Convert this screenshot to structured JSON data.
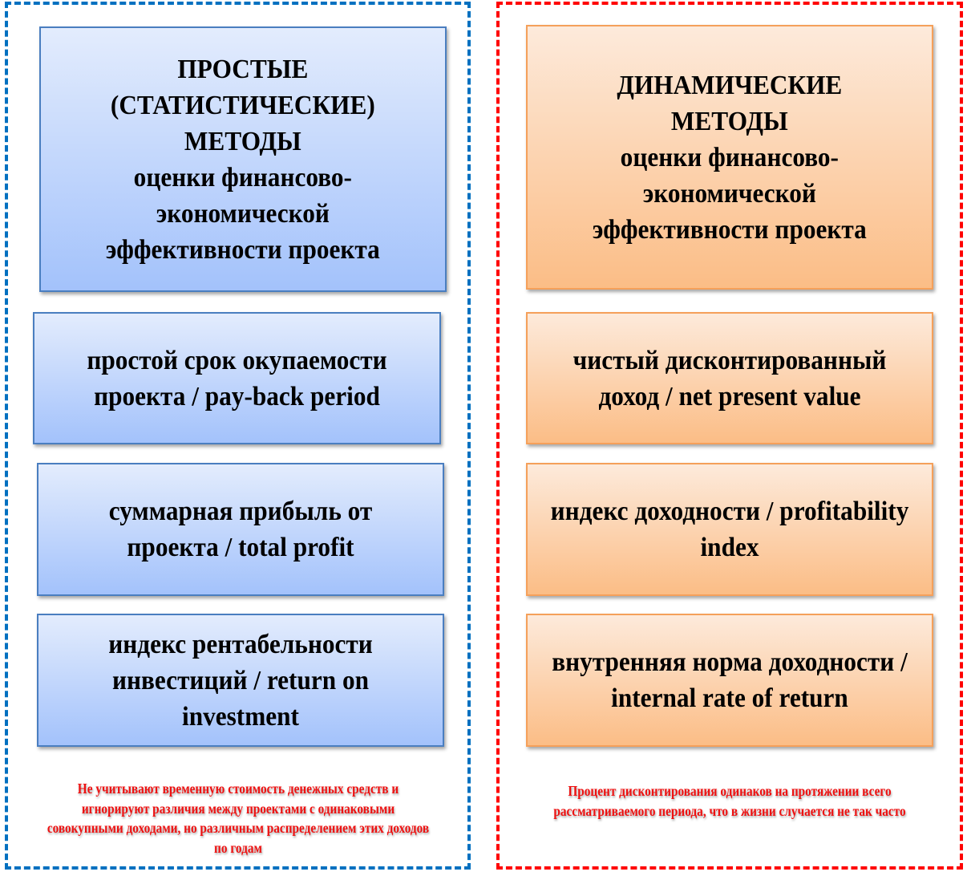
{
  "colors": {
    "left_frame": "#0070c0",
    "right_frame": "#ff0000",
    "note_text": "#ee1111"
  },
  "left": {
    "header": "ПРОСТЫЕ\n(СТАТИСТИЧЕСКИЕ)\nМЕТОДЫ\nоценки финансово-\nэкономической\nэффективности проекта",
    "items": [
      "простой срок окупаемости проекта / pay-back period",
      "суммарная прибыль от проекта / total profit",
      "индекс рентабельности инвестиций / return on investment"
    ],
    "note": "Не учитывают временную стоимость денежных средств и игнорируют различия между проектами с одинаковыми совокупными доходами, но различным распределением этих доходов по годам"
  },
  "right": {
    "header": "ДИНАМИЧЕСКИЕ\nМЕТОДЫ\nоценки финансово-\nэкономической\nэффективности проекта",
    "items": [
      "чистый дисконтированный доход / net present value",
      "индекс доходности / profitability index",
      "внутренняя норма доходности / internal rate of return"
    ],
    "note": "Процент дисконтирования одинаков на протяжении всего рассматриваемого периода, что в жизни случается не так часто"
  }
}
